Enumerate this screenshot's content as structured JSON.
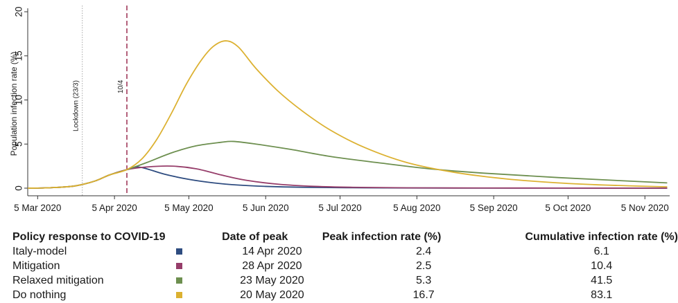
{
  "chart_data": {
    "type": "line",
    "xlabel": "",
    "ylabel": "Population infection rate (%)",
    "ylim": [
      0,
      20
    ],
    "yticks": [
      0,
      5,
      10,
      15,
      20
    ],
    "xlim": [
      "2020-03-01",
      "2020-11-15"
    ],
    "xticks": [
      {
        "date": "2020-03-05",
        "label": "5 Mar 2020"
      },
      {
        "date": "2020-04-05",
        "label": "5 Apr 2020"
      },
      {
        "date": "2020-05-05",
        "label": "5 May 2020"
      },
      {
        "date": "2020-06-05",
        "label": "5 Jun 2020"
      },
      {
        "date": "2020-07-05",
        "label": "5 Jul 2020"
      },
      {
        "date": "2020-08-05",
        "label": "5 Aug 2020"
      },
      {
        "date": "2020-09-05",
        "label": "5 Sep 2020"
      },
      {
        "date": "2020-10-05",
        "label": "5 Oct 2020"
      },
      {
        "date": "2020-11-05",
        "label": "5 Nov 2020"
      }
    ],
    "grid": false,
    "annotations": [
      {
        "date": "2020-03-23",
        "label": "Lockdown (23/3)",
        "style": "dotted",
        "color": "#b5b5b5"
      },
      {
        "date": "2020-04-10",
        "label": "10/4",
        "style": "dashed",
        "color": "#a0385a"
      }
    ],
    "series": [
      {
        "name": "Italy-model",
        "color": "#2e4c80",
        "x": [
          "2020-03-01",
          "2020-03-10",
          "2020-03-20",
          "2020-03-28",
          "2020-04-03",
          "2020-04-10",
          "2020-04-14",
          "2020-04-18",
          "2020-04-25",
          "2020-05-05",
          "2020-05-15",
          "2020-05-25",
          "2020-06-05",
          "2020-06-20",
          "2020-07-10",
          "2020-08-01",
          "2020-09-01",
          "2020-10-01",
          "2020-11-14"
        ],
        "y": [
          0,
          0.05,
          0.25,
          0.8,
          1.5,
          2.1,
          2.4,
          2.2,
          1.6,
          1.0,
          0.6,
          0.35,
          0.2,
          0.1,
          0.05,
          0.02,
          0.01,
          0.01,
          0
        ]
      },
      {
        "name": "Mitigation",
        "color": "#963d6a",
        "x": [
          "2020-03-01",
          "2020-03-10",
          "2020-03-20",
          "2020-03-28",
          "2020-04-03",
          "2020-04-10",
          "2020-04-18",
          "2020-04-28",
          "2020-05-08",
          "2020-05-18",
          "2020-05-28",
          "2020-06-10",
          "2020-06-25",
          "2020-07-10",
          "2020-08-01",
          "2020-09-01",
          "2020-10-01",
          "2020-11-14"
        ],
        "y": [
          0,
          0.05,
          0.25,
          0.8,
          1.5,
          2.1,
          2.4,
          2.5,
          2.2,
          1.5,
          0.9,
          0.45,
          0.2,
          0.1,
          0.04,
          0.02,
          0.01,
          0
        ]
      },
      {
        "name": "Relaxed mitigation",
        "color": "#6d8f4f",
        "x": [
          "2020-03-01",
          "2020-03-10",
          "2020-03-20",
          "2020-03-28",
          "2020-04-03",
          "2020-04-10",
          "2020-04-18",
          "2020-04-28",
          "2020-05-08",
          "2020-05-18",
          "2020-05-23",
          "2020-06-01",
          "2020-06-15",
          "2020-07-01",
          "2020-07-20",
          "2020-08-10",
          "2020-09-01",
          "2020-10-01",
          "2020-11-14"
        ],
        "y": [
          0,
          0.05,
          0.25,
          0.8,
          1.5,
          2.1,
          2.9,
          4.0,
          4.8,
          5.2,
          5.3,
          5.0,
          4.4,
          3.6,
          2.9,
          2.2,
          1.7,
          1.2,
          0.6
        ]
      },
      {
        "name": "Do nothing",
        "color": "#dcb131",
        "x": [
          "2020-03-01",
          "2020-03-10",
          "2020-03-20",
          "2020-03-28",
          "2020-04-03",
          "2020-04-10",
          "2020-04-16",
          "2020-04-22",
          "2020-04-28",
          "2020-05-04",
          "2020-05-10",
          "2020-05-15",
          "2020-05-20",
          "2020-05-25",
          "2020-06-01",
          "2020-06-10",
          "2020-06-20",
          "2020-07-01",
          "2020-07-15",
          "2020-08-01",
          "2020-08-20",
          "2020-09-10",
          "2020-10-01",
          "2020-10-20",
          "2020-11-14"
        ],
        "y": [
          0,
          0.05,
          0.25,
          0.8,
          1.5,
          2.1,
          3.3,
          5.5,
          8.5,
          11.8,
          14.5,
          16.1,
          16.7,
          16.0,
          13.6,
          11.0,
          8.7,
          6.6,
          4.6,
          2.9,
          1.8,
          1.05,
          0.6,
          0.35,
          0.15
        ]
      }
    ]
  },
  "table": {
    "headers": {
      "policy": "Policy response to COVID-19",
      "date_of_peak": "Date of peak",
      "peak_rate": "Peak infection rate (%)",
      "cumulative_rate": "Cumulative infection rate (%)"
    },
    "rows": [
      {
        "policy": "Italy-model",
        "color": "#2e4c80",
        "date_of_peak": "14 Apr 2020",
        "peak_rate": "2.4",
        "cumulative_rate": "6.1"
      },
      {
        "policy": "Mitigation",
        "color": "#963d6a",
        "date_of_peak": "28 Apr 2020",
        "peak_rate": "2.5",
        "cumulative_rate": "10.4"
      },
      {
        "policy": "Relaxed mitigation",
        "color": "#6d8f4f",
        "date_of_peak": "23 May 2020",
        "peak_rate": "5.3",
        "cumulative_rate": "41.5"
      },
      {
        "policy": "Do nothing",
        "color": "#dcb131",
        "date_of_peak": "20 May 2020",
        "peak_rate": "16.7",
        "cumulative_rate": "83.1"
      }
    ]
  }
}
